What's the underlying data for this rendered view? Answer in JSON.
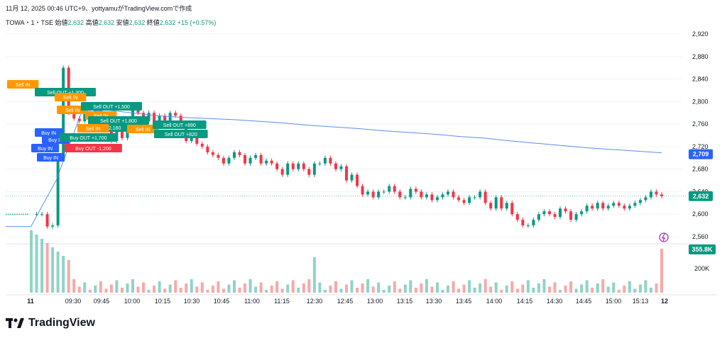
{
  "header": {
    "caption": "11月 12, 2025 00:46 UTC+9、yottyamuがTradingView.comで作成"
  },
  "symbol": {
    "name": "TOWA・1・TSE",
    "open_label": "始値",
    "open_value": "2,632",
    "high_label": "高値",
    "high_value": "2,632",
    "low_label": "安値",
    "low_value": "2,632",
    "close_label": "終値",
    "close_value": "2,632",
    "change": "+15 (+0.57%)"
  },
  "brand": {
    "name": "TradingView"
  },
  "colors": {
    "up": "#089981",
    "down": "#f23645",
    "vwap": "#5b8def",
    "sell": "#ff9800",
    "buy": "#2962ff",
    "axis_badge_blue": "#2962ff",
    "axis_badge_green": "#089981"
  },
  "chart_data": {
    "type": "candlestick",
    "price_axis": {
      "ticks": [
        "2,920",
        "2,880",
        "2,840",
        "2,800",
        "2,760",
        "2,720",
        "2,680",
        "2,640",
        "2,600",
        "2,560"
      ],
      "range": [
        2560,
        2930
      ]
    },
    "time_axis": {
      "ticks": [
        "11",
        "09:30",
        "09:45",
        "10:00",
        "10:15",
        "10:30",
        "10:45",
        "11:00",
        "11:15",
        "12:30",
        "12:45",
        "13:00",
        "13:15",
        "13:30",
        "13:45",
        "14:00",
        "14:15",
        "14:30",
        "14:45",
        "15:00",
        "15:13",
        "12"
      ]
    },
    "volume_axis": {
      "ticks": [
        "200K"
      ]
    },
    "last_price": "2,632",
    "vwap_value": "2,709",
    "volume_value": "355.8K",
    "close_path": [
      2600,
      2600,
      2600,
      2578,
      2580,
      2700,
      2860,
      2780,
      2770,
      2765,
      2780,
      2760,
      2790,
      2760,
      2750,
      2730,
      2760,
      2735,
      2770,
      2790,
      2780,
      2765,
      2780,
      2760,
      2775,
      2760,
      2780,
      2775,
      2760,
      2730,
      2740,
      2725,
      2720,
      2710,
      2705,
      2700,
      2690,
      2700,
      2710,
      2705,
      2690,
      2700,
      2705,
      2690,
      2695,
      2690,
      2680,
      2670,
      2690,
      2680,
      2690,
      2680,
      2670,
      2690,
      2690,
      2700,
      2690,
      2680,
      2685,
      2660,
      2670,
      2650,
      2635,
      2640,
      2630,
      2640,
      2640,
      2650,
      2640,
      2630,
      2630,
      2645,
      2640,
      2630,
      2635,
      2625,
      2630,
      2635,
      2640,
      2630,
      2625,
      2620,
      2630,
      2630,
      2640,
      2620,
      2610,
      2630,
      2610,
      2620,
      2600,
      2590,
      2580,
      2580,
      2590,
      2600,
      2605,
      2600,
      2595,
      2610,
      2605,
      2590,
      2600,
      2605,
      2615,
      2610,
      2620,
      2610,
      2615,
      2620,
      2615,
      2610,
      2615,
      2620,
      2625,
      2630,
      2640,
      2635,
      2632
    ],
    "vwap_path": [
      2578,
      2578,
      2660,
      2780,
      2785,
      2780,
      2775,
      2772,
      2770,
      2768,
      2765,
      2762,
      2758,
      2755,
      2752,
      2748,
      2745,
      2742,
      2738,
      2735,
      2730,
      2726,
      2722,
      2718,
      2715,
      2712,
      2709
    ],
    "annotations": [
      {
        "text": "Sell IN",
        "kind": "sell"
      },
      {
        "text": "Sell OUT +1,300",
        "kind": "sell-out"
      },
      {
        "text": "Sell IN",
        "kind": "sell"
      },
      {
        "text": "Sell IN",
        "kind": "sell"
      },
      {
        "text": "Sell OUT +1,500",
        "kind": "sell-out"
      },
      {
        "text": "Sell IN",
        "kind": "sell"
      },
      {
        "text": "Sell OUT +1,800",
        "kind": "sell-out"
      },
      {
        "text": "+2,160",
        "kind": "sell-out"
      },
      {
        "text": "Sell IN",
        "kind": "sell"
      },
      {
        "text": "Sell IN",
        "kind": "sell"
      },
      {
        "text": "Sell OUT +890",
        "kind": "sell-out"
      },
      {
        "text": "Sell OUT +820",
        "kind": "sell-out"
      },
      {
        "text": "Buy IN",
        "kind": "buy"
      },
      {
        "text": "Buy IN",
        "kind": "buy"
      },
      {
        "text": "Buy IN",
        "kind": "buy"
      },
      {
        "text": "Buy IN",
        "kind": "buy"
      },
      {
        "text": "Buy OUT +1,700",
        "kind": "buy-out"
      },
      {
        "text": "Buy OUT -1,200",
        "kind": "buy-loss"
      }
    ]
  }
}
